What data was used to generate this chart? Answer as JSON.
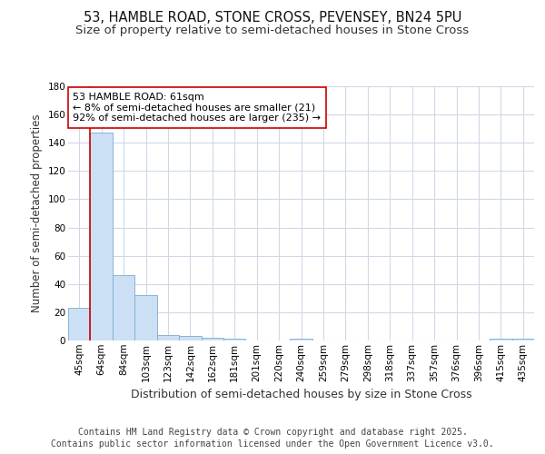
{
  "title": "53, HAMBLE ROAD, STONE CROSS, PEVENSEY, BN24 5PU",
  "subtitle": "Size of property relative to semi-detached houses in Stone Cross",
  "xlabel": "Distribution of semi-detached houses by size in Stone Cross",
  "ylabel": "Number of semi-detached properties",
  "bins": [
    "45sqm",
    "64sqm",
    "84sqm",
    "103sqm",
    "123sqm",
    "142sqm",
    "162sqm",
    "181sqm",
    "201sqm",
    "220sqm",
    "240sqm",
    "259sqm",
    "279sqm",
    "298sqm",
    "318sqm",
    "337sqm",
    "357sqm",
    "376sqm",
    "396sqm",
    "415sqm",
    "435sqm"
  ],
  "values": [
    23,
    147,
    46,
    32,
    4,
    3,
    2,
    1,
    0,
    0,
    1,
    0,
    0,
    0,
    0,
    0,
    0,
    0,
    0,
    1,
    1
  ],
  "bar_color": "#cce0f5",
  "bar_edge_color": "#7aaad0",
  "red_line_index": 1,
  "annotation_text": "53 HAMBLE ROAD: 61sqm\n← 8% of semi-detached houses are smaller (21)\n92% of semi-detached houses are larger (235) →",
  "annotation_box_color": "#ffffff",
  "annotation_box_edge_color": "#cc0000",
  "red_line_color": "#cc0000",
  "ylim": [
    0,
    180
  ],
  "yticks": [
    0,
    20,
    40,
    60,
    80,
    100,
    120,
    140,
    160,
    180
  ],
  "background_color": "#ffffff",
  "plot_bg_color": "#ffffff",
  "grid_color": "#d0d8e8",
  "footer_line1": "Contains HM Land Registry data © Crown copyright and database right 2025.",
  "footer_line2": "Contains public sector information licensed under the Open Government Licence v3.0.",
  "title_fontsize": 10.5,
  "subtitle_fontsize": 9.5,
  "xlabel_fontsize": 9,
  "ylabel_fontsize": 8.5,
  "annotation_fontsize": 8,
  "tick_fontsize": 7.5,
  "footer_fontsize": 7
}
